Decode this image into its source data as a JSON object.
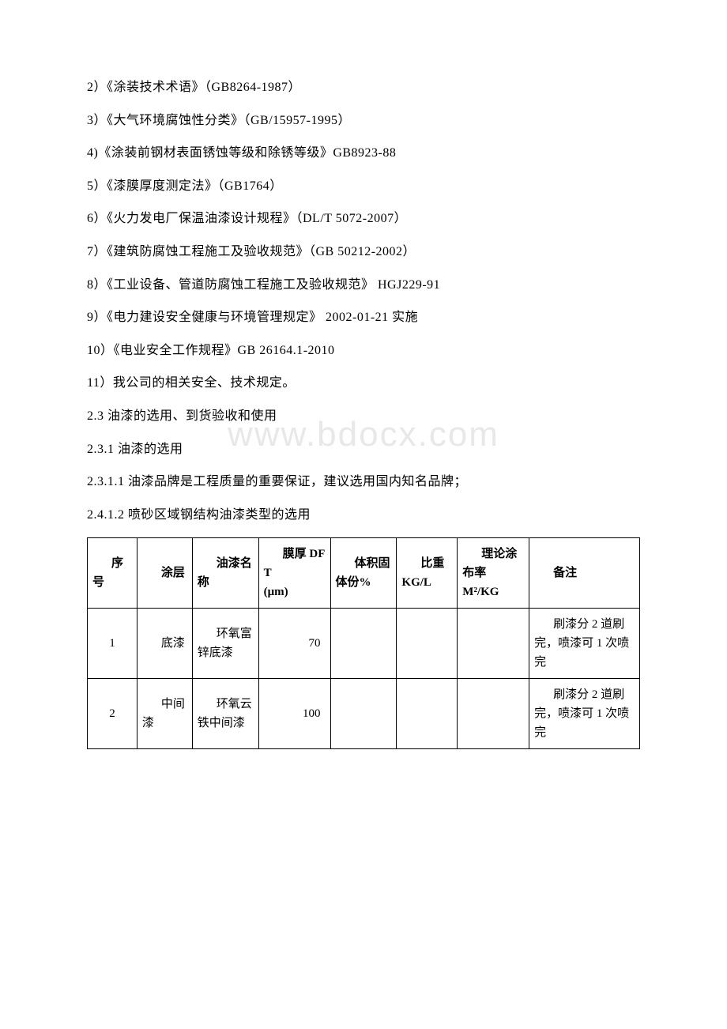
{
  "watermark": "www.bdocx.com",
  "lines": [
    "2）《涂装技术术语》（GB8264-1987）",
    "3）《大气环境腐蚀性分类》（GB/15957-1995）",
    "4)《涂装前钢材表面锈蚀等级和除锈等级》GB8923-88",
    "5）《漆膜厚度测定法》（GB1764）",
    "6）《火力发电厂保温油漆设计规程》（DL/T 5072-2007）",
    "7）《建筑防腐蚀工程施工及验收规范》（GB 50212-2002）",
    "8）《工业设备、管道防腐蚀工程施工及验收规范》 HGJ229-91",
    "9）《电力建设安全健康与环境管理规定》 2002-01-21 实施",
    "10）《电业安全工作规程》GB 26164.1-2010",
    "11）我公司的相关安全、技术规定。",
    "2.3 油漆的选用、到货验收和使用",
    "2.3.1 油漆的选用",
    "2.3.1.1 油漆品牌是工程质量的重要保证，建议选用国内知名品牌；",
    "2.4.1.2 喷砂区域钢结构油漆类型的选用"
  ],
  "table": {
    "headers": {
      "seq": "序号",
      "layer": "涂层",
      "name": "油漆名称",
      "dft": "膜厚 DFT\n (μm)",
      "vol": "体积固体份%",
      "weight": "比重\n KG/L",
      "rate": "理论涂布率\n M²/KG",
      "note": "备注"
    },
    "rows": [
      {
        "seq": "1",
        "layer": "底漆",
        "name": "环氧富锌底漆",
        "dft": "70",
        "vol": "",
        "weight": "",
        "rate": "",
        "note": "刷漆分 2 道刷完，喷漆可 1 次喷完"
      },
      {
        "seq": "2",
        "layer": "中间漆",
        "name": "环氧云铁中间漆",
        "dft": "100",
        "vol": "",
        "weight": "",
        "rate": "",
        "note": "刷漆分 2 道刷完，喷漆可 1 次喷完"
      }
    ]
  }
}
